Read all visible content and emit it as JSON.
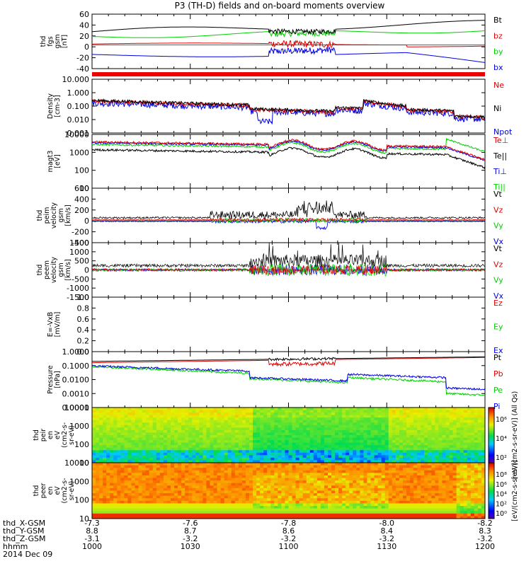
{
  "title": "P3 (TH-D) fields and on-board moments overview",
  "colors": {
    "black": "#000000",
    "red": "#e00000",
    "green": "#00d000",
    "blue": "#0000e0",
    "red_bar": "#ee0000"
  },
  "time_axis": {
    "ticks": [
      "1000",
      "1030",
      "1100",
      "1130",
      "1200"
    ],
    "rows": [
      {
        "label": "thd_X-GSM",
        "values": [
          "-7.3",
          "-7.6",
          "-7.8",
          "-8.0",
          "-8.2"
        ]
      },
      {
        "label": "thd_Y-GSM",
        "values": [
          "8.8",
          "8.7",
          "8.6",
          "8.4",
          "8.3"
        ]
      },
      {
        "label": "thd_Z-GSM",
        "values": [
          "-3.1",
          "-3.2",
          "-3.2",
          "-3.2",
          "-3.2"
        ]
      },
      {
        "label": "hhmm",
        "values": [
          "1000",
          "1030",
          "1100",
          "1130",
          "1200"
        ]
      }
    ],
    "date": "2014 Dec 09"
  },
  "chart_data": [
    {
      "type": "line",
      "id": "fgs",
      "ylabel": [
        "thd",
        "fgs",
        "gsm",
        "[nT]"
      ],
      "ylim": [
        -50,
        65
      ],
      "yticks": [
        "60",
        "40",
        "20",
        "0",
        "-20",
        "-40"
      ],
      "series": [
        {
          "name": "Bt",
          "color": "black"
        },
        {
          "name": "bz",
          "color": "red"
        },
        {
          "name": "by",
          "color": "green"
        },
        {
          "name": "bx",
          "color": "blue"
        }
      ]
    },
    {
      "type": "line",
      "id": "density",
      "ylabel": [
        "Density",
        "[cm-3]"
      ],
      "log": true,
      "ylim": [
        0.001,
        30
      ],
      "yticks": [
        "10.000",
        "1.000",
        "0.100",
        "0.010",
        "0.001"
      ],
      "series": [
        {
          "name": "Ne",
          "color": "red"
        },
        {
          "name": "Ni",
          "color": "black"
        },
        {
          "name": "Npot",
          "color": "blue"
        }
      ]
    },
    {
      "type": "line",
      "id": "temp",
      "ylabel": [
        "magt3",
        "[eV]"
      ],
      "log": true,
      "ylim": [
        10,
        12000
      ],
      "yticks": [
        "10000",
        "1000",
        "100",
        "10"
      ],
      "series": [
        {
          "name": "Te⊥",
          "color": "red"
        },
        {
          "name": "Te||",
          "color": "black"
        },
        {
          "name": "Ti⊥",
          "color": "blue"
        },
        {
          "name": "Ti||",
          "color": "green"
        }
      ]
    },
    {
      "type": "line",
      "id": "peim",
      "ylabel": [
        "thd",
        "peim",
        "velocity",
        "gsm",
        "[km/s]"
      ],
      "ylim": [
        -400,
        600
      ],
      "yticks": [
        "600",
        "400",
        "200",
        "0",
        "-200",
        "-400"
      ],
      "series": [
        {
          "name": "Vt",
          "color": "black"
        },
        {
          "name": "Vz",
          "color": "red"
        },
        {
          "name": "Vy",
          "color": "green"
        },
        {
          "name": "Vx",
          "color": "blue"
        }
      ]
    },
    {
      "type": "line",
      "id": "peem",
      "ylabel": [
        "thd",
        "peem",
        "velocity",
        "gsm",
        "[km/s]"
      ],
      "ylim": [
        -1500,
        1500
      ],
      "yticks": [
        "1500",
        "1000",
        "500",
        "0",
        "-500",
        "-1000",
        "-1500"
      ],
      "series": [
        {
          "name": "Vt",
          "color": "black"
        },
        {
          "name": "Vz",
          "color": "red"
        },
        {
          "name": "Vy",
          "color": "green"
        },
        {
          "name": "Vx",
          "color": "blue"
        }
      ]
    },
    {
      "type": "line",
      "id": "exb",
      "ylabel": [
        "E=-VxB",
        "[mV/m]"
      ],
      "ylim": [
        0,
        1
      ],
      "yticks": [
        "1.0",
        "0.8",
        "0.6",
        "0.4",
        "0.2",
        "0.0"
      ],
      "series": [
        {
          "name": "Ez",
          "color": "red"
        },
        {
          "name": "Ey",
          "color": "green"
        },
        {
          "name": "Ex",
          "color": "blue"
        }
      ]
    },
    {
      "type": "line",
      "id": "pressure",
      "ylabel": [
        "Pressure",
        "[nPa]"
      ],
      "log": true,
      "ylim": [
        0.0001,
        2
      ],
      "yticks": [
        "1.0000",
        "0.1000",
        "0.0100",
        "0.0010",
        "0.0001"
      ],
      "series": [
        {
          "name": "Pt",
          "color": "black"
        },
        {
          "name": "Pb",
          "color": "red"
        },
        {
          "name": "Pe",
          "color": "green"
        },
        {
          "name": "Pi",
          "color": "blue"
        }
      ]
    },
    {
      "type": "heatmap",
      "id": "peir",
      "ylabel": [
        "thd",
        "peir",
        "en",
        "eV",
        "(cm2-s-",
        "sr-eV)"
      ],
      "yticks": [
        "10000",
        "1000",
        "100",
        "10"
      ],
      "colorbar": {
        "label": "[eV/(cm2-s-sr-eV)] (All Qs)",
        "ticks": [
          "10⁶",
          "10⁴",
          "10²"
        ]
      }
    },
    {
      "type": "heatmap",
      "id": "peer",
      "ylabel": [
        "thd",
        "peer",
        "en",
        "eV",
        "(cm2-s-",
        "sr-eV)"
      ],
      "yticks": [
        "10000",
        "1000",
        "100",
        "10"
      ],
      "colorbar": {
        "label": "[eV/(cm2-s-sr-eV)]",
        "ticks": [
          "10⁸",
          "10⁶",
          "10⁴",
          "10²",
          "10⁰"
        ]
      }
    }
  ]
}
